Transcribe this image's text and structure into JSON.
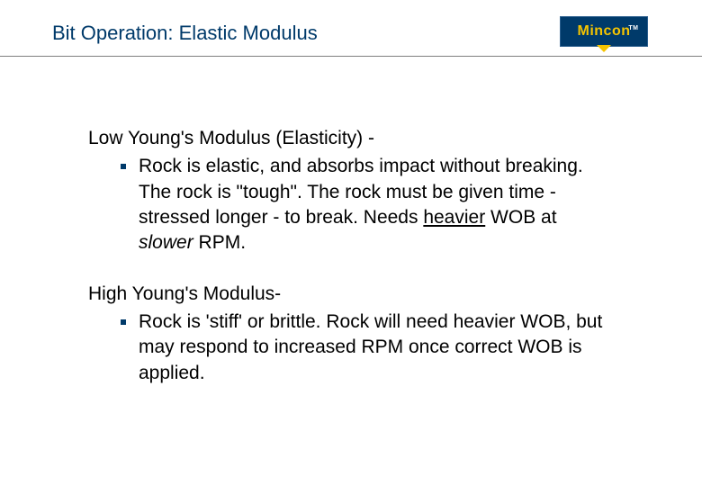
{
  "header": {
    "title": "Bit Operation: Elastic Modulus",
    "title_color": "#003a6a",
    "title_fontsize": 22,
    "underline_color": "#7f7f7f"
  },
  "logo": {
    "text": "Mincon",
    "tm": "TM",
    "bg_color": "#003a6a",
    "text_color": "#f5c400",
    "arrow_color": "#f5c400"
  },
  "sections": [
    {
      "heading": "Low Young's Modulus (Elasticity) -",
      "bullets": [
        {
          "pre": "Rock is elastic, and absorbs impact without breaking. The rock is \"tough\". The rock must be given time - stressed longer - to break. Needs ",
          "underline": "heavier",
          "mid": " WOB at ",
          "italic": "slower",
          "post": " RPM."
        }
      ]
    },
    {
      "heading": "High Young's Modulus-",
      "bullets": [
        {
          "pre": "Rock is 'stiff' or brittle. Rock will need heavier WOB, but may respond to increased RPM once correct WOB is applied.",
          "underline": "",
          "mid": "",
          "italic": "",
          "post": ""
        }
      ]
    }
  ],
  "style": {
    "body_fontsize": 21,
    "bullet_marker_color": "#003a6a",
    "background_color": "#ffffff",
    "text_color": "#000000"
  }
}
